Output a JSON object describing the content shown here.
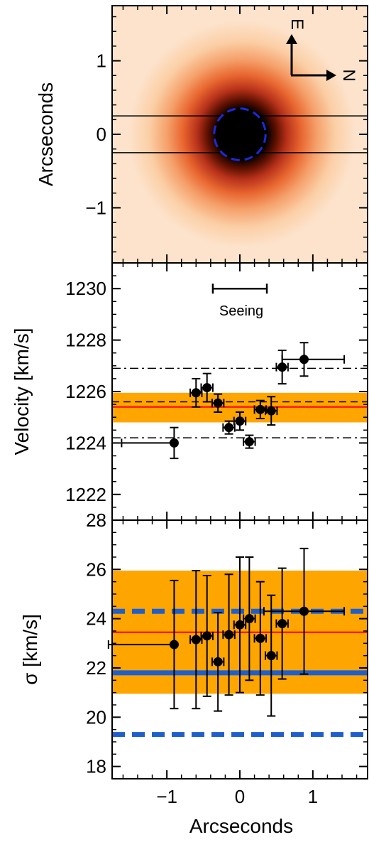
{
  "chart_data": [
    {
      "type": "heatmap",
      "ylabel": "Arcseconds",
      "xlim": [
        -1.75,
        1.75
      ],
      "ylim": [
        -1.75,
        1.75
      ],
      "yticks": [
        1,
        0,
        -1
      ],
      "ytick_labels": [
        "1",
        "0",
        "−1"
      ],
      "source_center": [
        0,
        0
      ],
      "slit_lines_y": [
        0.25,
        -0.25
      ],
      "aperture_radius": 0.35,
      "compass": {
        "up_label": "E",
        "right_label": "N"
      },
      "colors": {
        "background": "#fde3cc",
        "mid": "#f0874a",
        "core": "#000000",
        "aperture": "#1a2bd6"
      }
    },
    {
      "type": "scatter",
      "ylabel": "Velocity [km/s]",
      "xlim": [
        -1.75,
        1.75
      ],
      "ylim": [
        1221,
        1231
      ],
      "yticks": [
        1222,
        1224,
        1226,
        1228,
        1230
      ],
      "ytick_labels": [
        "1222",
        "1224",
        "1226",
        "1228",
        "1230"
      ],
      "seeing": {
        "label": "Seeing",
        "x": [
          -0.37,
          0.37
        ],
        "y": 1230
      },
      "band": {
        "low": 1224.8,
        "high": 1225.95,
        "color": "#ffa500"
      },
      "mean_line": {
        "y": 1225.4,
        "color": "#ff0000"
      },
      "dashed_line": {
        "y": 1225.6
      },
      "dashdot_lines": [
        1226.9,
        1224.2
      ],
      "points": [
        {
          "x": -0.9,
          "y": 1224.0,
          "xerr_low": 0.72,
          "xerr_high": 0.0,
          "yerr": 0.6
        },
        {
          "x": -0.6,
          "y": 1225.95,
          "xerr_low": 0.08,
          "xerr_high": 0.08,
          "yerr": 0.55
        },
        {
          "x": -0.45,
          "y": 1226.15,
          "xerr_low": 0.08,
          "xerr_high": 0.08,
          "yerr": 0.55
        },
        {
          "x": -0.3,
          "y": 1225.55,
          "xerr_low": 0.08,
          "xerr_high": 0.08,
          "yerr": 0.35
        },
        {
          "x": -0.15,
          "y": 1224.6,
          "xerr_low": 0.08,
          "xerr_high": 0.08,
          "yerr": 0.25
        },
        {
          "x": 0.0,
          "y": 1224.85,
          "xerr_low": 0.08,
          "xerr_high": 0.08,
          "yerr": 0.35
        },
        {
          "x": 0.13,
          "y": 1224.05,
          "xerr_low": 0.08,
          "xerr_high": 0.08,
          "yerr": 0.25
        },
        {
          "x": 0.28,
          "y": 1225.3,
          "xerr_low": 0.08,
          "xerr_high": 0.08,
          "yerr": 0.35
        },
        {
          "x": 0.43,
          "y": 1225.25,
          "xerr_low": 0.08,
          "xerr_high": 0.08,
          "yerr": 0.55
        },
        {
          "x": 0.58,
          "y": 1226.95,
          "xerr_low": 0.08,
          "xerr_high": 0.08,
          "yerr": 0.65
        },
        {
          "x": 0.88,
          "y": 1227.25,
          "xerr_low": 0.3,
          "xerr_high": 0.55,
          "yerr": 0.65
        }
      ]
    },
    {
      "type": "scatter",
      "ylabel": "σ [km/s]",
      "xlabel": "Arcseconds",
      "xlim": [
        -1.75,
        1.75
      ],
      "ylim": [
        17.5,
        28
      ],
      "yticks": [
        18,
        20,
        22,
        24,
        26,
        28
      ],
      "ytick_labels": [
        "18",
        "20",
        "22",
        "24",
        "26",
        "28"
      ],
      "xticks": [
        -1,
        0,
        1
      ],
      "xtick_labels": [
        "−1",
        "0",
        "1"
      ],
      "band": {
        "low": 20.95,
        "high": 25.95,
        "color": "#ffa500"
      },
      "mean_line": {
        "y": 23.45,
        "color": "#ff0000"
      },
      "blue_solid_line": {
        "y": 21.8,
        "color": "#1f5fcc"
      },
      "blue_dashed_lines": [
        24.3,
        19.3
      ],
      "points": [
        {
          "x": -0.9,
          "y": 22.95,
          "xerr_low": 0.9,
          "xerr_high": 0.0,
          "yerr": 2.6
        },
        {
          "x": -0.6,
          "y": 23.15,
          "xerr_low": 0.08,
          "xerr_high": 0.08,
          "yerr": 2.8
        },
        {
          "x": -0.45,
          "y": 23.3,
          "xerr_low": 0.08,
          "xerr_high": 0.08,
          "yerr": 2.45
        },
        {
          "x": -0.3,
          "y": 22.25,
          "xerr_low": 0.08,
          "xerr_high": 0.08,
          "yerr": 2.0
        },
        {
          "x": -0.15,
          "y": 23.35,
          "xerr_low": 0.08,
          "xerr_high": 0.08,
          "yerr": 2.45
        },
        {
          "x": 0.0,
          "y": 23.75,
          "xerr_low": 0.08,
          "xerr_high": 0.08,
          "yerr": 2.75
        },
        {
          "x": 0.13,
          "y": 24.0,
          "xerr_low": 0.08,
          "xerr_high": 0.08,
          "yerr": 2.5
        },
        {
          "x": 0.28,
          "y": 23.2,
          "xerr_low": 0.08,
          "xerr_high": 0.08,
          "yerr": 2.3
        },
        {
          "x": 0.43,
          "y": 22.5,
          "xerr_low": 0.08,
          "xerr_high": 0.08,
          "yerr": 2.45
        },
        {
          "x": 0.58,
          "y": 23.8,
          "xerr_low": 0.08,
          "xerr_high": 0.08,
          "yerr": 2.25
        },
        {
          "x": 0.88,
          "y": 24.3,
          "xerr_low": 0.55,
          "xerr_high": 0.55,
          "yerr": 2.55
        }
      ]
    }
  ]
}
